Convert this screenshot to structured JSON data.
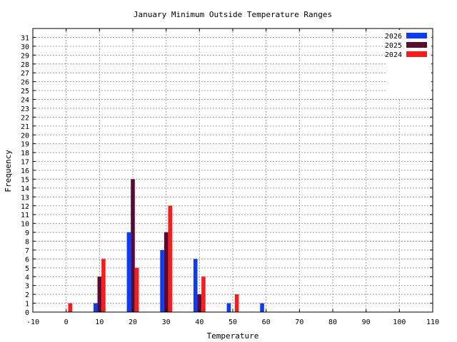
{
  "chart_data": {
    "type": "bar",
    "title": "January Minimum Outside Temperature Ranges",
    "xlabel": "Temperature",
    "ylabel": "Frequency",
    "xlim": [
      -10,
      110
    ],
    "ylim": [
      0,
      32
    ],
    "x_ticks": [
      -10,
      0,
      10,
      20,
      30,
      40,
      50,
      60,
      70,
      80,
      90,
      100,
      110
    ],
    "y_ticks": [
      0,
      1,
      2,
      3,
      4,
      5,
      6,
      7,
      8,
      9,
      10,
      11,
      12,
      13,
      14,
      15,
      16,
      17,
      18,
      19,
      20,
      21,
      22,
      23,
      24,
      25,
      26,
      27,
      28,
      29,
      30,
      31
    ],
    "grid": true,
    "legend_position": "top-right",
    "categories": [
      0,
      10,
      20,
      30,
      40,
      50,
      60
    ],
    "series": [
      {
        "name": "2026",
        "color": "#0a3cff",
        "values": [
          0,
          1,
          9,
          7,
          6,
          1,
          1
        ]
      },
      {
        "name": "2025",
        "color": "#5a0a32",
        "values": [
          0,
          4,
          15,
          9,
          2,
          0,
          0
        ]
      },
      {
        "name": "2024",
        "color": "#ff1a1a",
        "values": [
          1,
          6,
          5,
          12,
          4,
          2,
          0
        ]
      }
    ]
  }
}
